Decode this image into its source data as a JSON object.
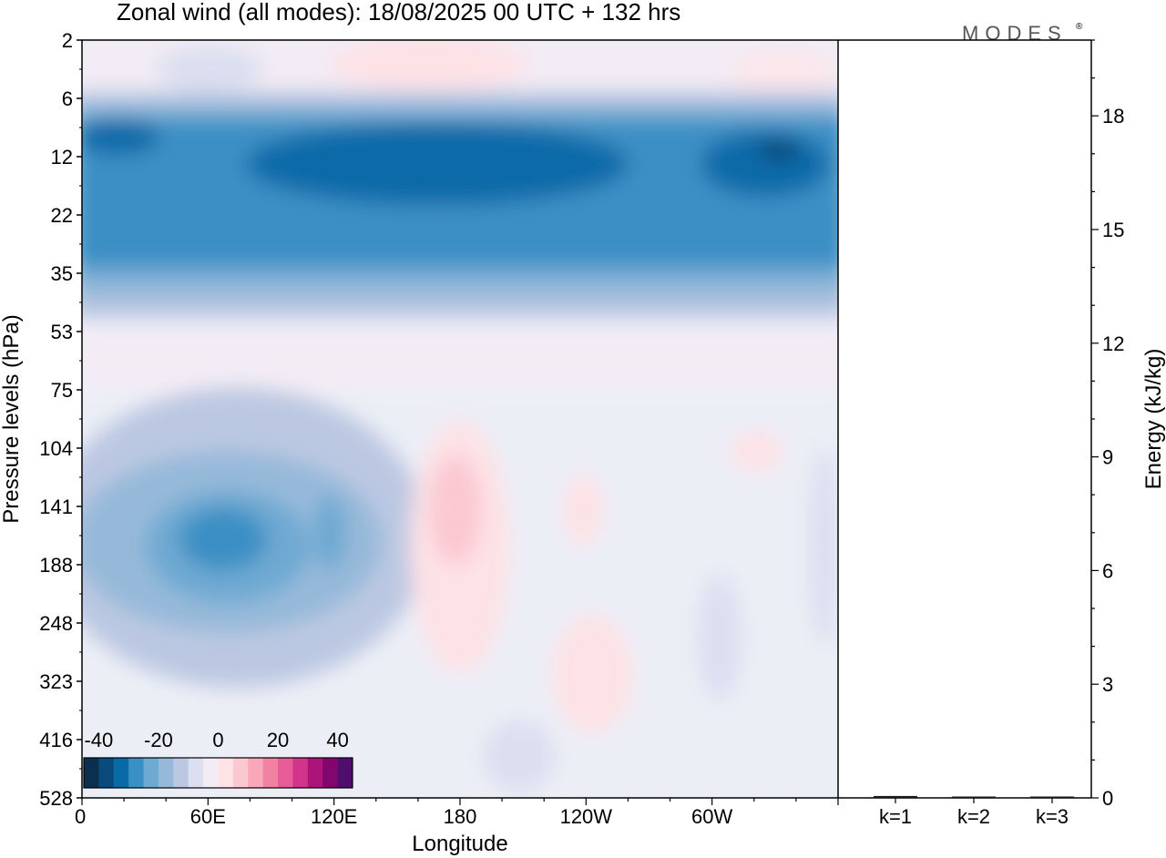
{
  "chart_data": [
    {
      "type": "heatmap",
      "title": "Zonal wind (all modes):  18/08/2025  00 UTC  + 132 hrs",
      "xlabel": "Longitude",
      "ylabel": "Pressure levels (hPa)",
      "xticks": [
        "0",
        "60E",
        "120E",
        "180",
        "120W",
        "60W"
      ],
      "xtick_values": [
        0,
        60,
        120,
        180,
        240,
        300
      ],
      "xlim": [
        0,
        360
      ],
      "yticks": [
        "2",
        "6",
        "12",
        "22",
        "35",
        "53",
        "75",
        "104",
        "141",
        "188",
        "248",
        "323",
        "416",
        "528"
      ],
      "colorbar": {
        "ticks": [
          "-40",
          "-20",
          "0",
          "20",
          "40"
        ],
        "tick_values": [
          -40,
          -20,
          0,
          20,
          40
        ],
        "range": [
          -45,
          45
        ],
        "colors": [
          "#0b2f4d",
          "#0a4a7c",
          "#0a6aa8",
          "#3a8fc4",
          "#6ea9d2",
          "#96b9d9",
          "#bcc8e2",
          "#dcdff0",
          "#f3ecf5",
          "#fde2e6",
          "#fbc7d0",
          "#f8a8b8",
          "#f282a4",
          "#e75b96",
          "#d3348b",
          "#ad1479",
          "#82066e",
          "#4f0e6b"
        ]
      },
      "wind_regions_m_per_s": [
        {
          "region": "stratospheric easterly jet, all longitudes",
          "pressure_hPa": [
            8,
            40
          ],
          "core_wind": -35
        },
        {
          "region": "easterly core 60E-90E",
          "pressure_hPa": [
            120,
            210
          ],
          "core_wind": -30
        },
        {
          "region": "westerly core near 180",
          "pressure_hPa": [
            110,
            200
          ],
          "core_wind": 12
        }
      ]
    },
    {
      "type": "bar",
      "ylabel": "Energy (kJ/kg)",
      "categories": [
        "k=1",
        "k=2",
        "k=3"
      ],
      "values": [
        0.05,
        0.03,
        0.01
      ],
      "ylim": [
        0,
        20
      ],
      "yticks": [
        "0",
        "3",
        "6",
        "9",
        "12",
        "15",
        "18"
      ],
      "ytick_values": [
        0,
        3,
        6,
        9,
        12,
        15,
        18
      ]
    }
  ],
  "logo_text": "MODES"
}
